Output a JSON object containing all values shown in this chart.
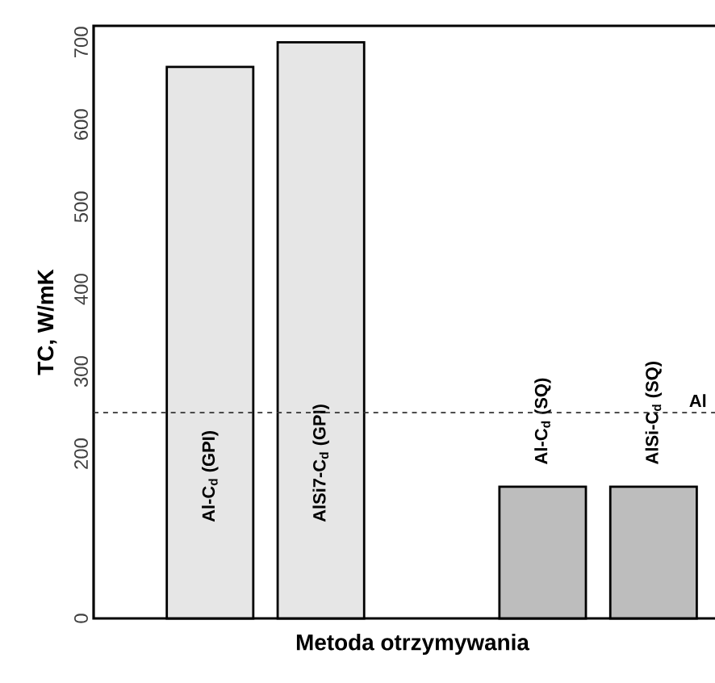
{
  "chart_data": {
    "type": "bar",
    "xlabel": "Metoda otrzymywania",
    "ylabel": "TC, W/mK",
    "categories": [
      "Al-C$_{d}$  (GPI)",
      "AlSi7-C$_{d}$  (GPI)",
      null,
      "Al-C$_{d}$  (SQ)",
      "AlSi-C$_{d}$  (SQ)"
    ],
    "values": [
      670,
      700,
      null,
      160,
      160
    ],
    "colors": [
      "#e6e6e6",
      "#e6e6e6",
      "#ffffff",
      "#bdbdbd",
      "#bdbdbd"
    ],
    "ylim": [
      0,
      720
    ],
    "yticks": [
      0,
      200,
      300,
      400,
      500,
      600,
      700
    ],
    "ref_lines": [
      {
        "axis": "y",
        "value": 250,
        "label": "Al",
        "line_style": "dashed",
        "color": "#333333"
      }
    ],
    "grid": false
  }
}
